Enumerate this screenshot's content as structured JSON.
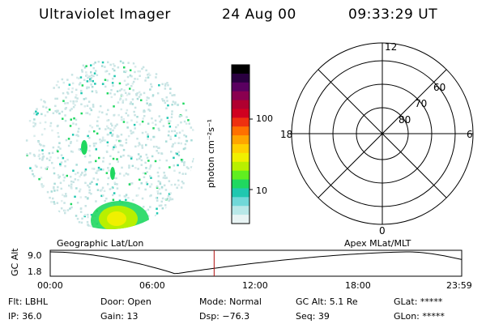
{
  "header": {
    "title": "Ultraviolet Imager",
    "date": "24 Aug 00",
    "time": "09:33:29 UT"
  },
  "image_panel": {
    "label": "Geographic Lat/Lon"
  },
  "colorbar": {
    "unit_label": "photon cm⁻²s⁻¹",
    "ticks": [
      "100",
      "10"
    ],
    "colors": [
      "#000000",
      "#2a0040",
      "#5a0060",
      "#8a0050",
      "#b00030",
      "#d00020",
      "#ee3010",
      "#ff7000",
      "#ffa500",
      "#ffd000",
      "#f0f000",
      "#b8f000",
      "#60ee20",
      "#20d860",
      "#20c8b0",
      "#70d8d8",
      "#b8e8e8",
      "#e8f4f4"
    ]
  },
  "polar_plot": {
    "label": "Apex MLat/MLT",
    "mlt_labels": {
      "top": "12",
      "right": "6",
      "bottom": "0",
      "left": "18"
    },
    "lat_labels": [
      "60",
      "70",
      "80"
    ]
  },
  "altitude_chart": {
    "ylabel": "GC Alt",
    "ytick_top": "9.0",
    "ytick_bottom": "1.8",
    "xticks": [
      "00:00",
      "06:00",
      "12:00",
      "18:00",
      "23:59"
    ],
    "current_time_hours": 9.56,
    "accent_color": "#b01010"
  },
  "status": {
    "flt": "Flt: LBHL",
    "ip": "IP: 36.0",
    "door": "Door: Open",
    "gain": "Gain: 13",
    "mode": "Mode: Normal",
    "dsp": "Dsp:  −76.3",
    "gc_alt": "GC Alt: 5.1 Re",
    "seq": "Seq: 39",
    "glat": "GLat: *****",
    "glon": "GLon: *****"
  }
}
